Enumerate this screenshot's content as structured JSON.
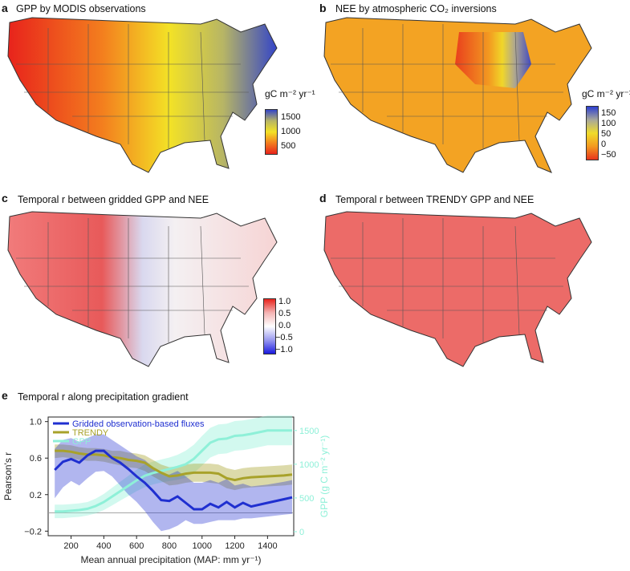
{
  "panels": {
    "a": {
      "letter": "a",
      "title": "GPP by MODIS observations",
      "unit": "gC m⁻² yr⁻¹",
      "ticks": [
        "1500",
        "1000",
        "500"
      ]
    },
    "b": {
      "letter": "b",
      "title": "NEE by atmospheric CO₂ inversions",
      "unit": "gC m⁻² yr⁻¹",
      "ticks": [
        "150",
        "100",
        "50",
        "0",
        "−50"
      ]
    },
    "c": {
      "letter": "c",
      "title": "Temporal r between gridded GPP and NEE",
      "ticks": [
        "1.0",
        "0.5",
        "0.0",
        "−0.5",
        "−1.0"
      ]
    },
    "d": {
      "letter": "d",
      "title": "Temporal r between TRENDY GPP and NEE"
    },
    "e": {
      "letter": "e",
      "title": "Temporal r along precipitation gradient"
    }
  },
  "colors": {
    "gridded": "#1f2fd0",
    "trendy": "#a8a22a",
    "gpp": "#8ef0d8"
  },
  "chart_data": [
    {
      "type": "line",
      "title": "Temporal r along precipitation gradient",
      "xlabel": "Mean annual precipitation (MAP: mm yr⁻¹)",
      "ylabel": "Pearson's r",
      "y2label": "GPP (g C m⁻² yr⁻¹)",
      "xlim": [
        60,
        1560
      ],
      "ylim": [
        -0.25,
        1.05
      ],
      "y2lim": [
        -60,
        1700
      ],
      "xticks": [
        "200",
        "400",
        "600",
        "800",
        "1000",
        "1200",
        "1400"
      ],
      "yticks": [
        "−0.2",
        "0.2",
        "0.6",
        "1.0"
      ],
      "y2ticks": [
        "0",
        "500",
        "1000",
        "1500"
      ],
      "legend_position": "top-left",
      "x": [
        100,
        150,
        200,
        250,
        300,
        350,
        400,
        450,
        500,
        550,
        600,
        650,
        700,
        750,
        800,
        850,
        900,
        950,
        1000,
        1050,
        1100,
        1150,
        1200,
        1250,
        1300,
        1400,
        1500,
        1550
      ],
      "series": [
        {
          "name": "Gridded observation-based fluxes",
          "axis": "left",
          "values": [
            0.47,
            0.56,
            0.59,
            0.55,
            0.63,
            0.68,
            0.68,
            0.6,
            0.55,
            0.48,
            0.4,
            0.33,
            0.24,
            0.14,
            0.13,
            0.18,
            0.11,
            0.04,
            0.04,
            0.1,
            0.06,
            0.12,
            0.06,
            0.11,
            0.07,
            0.11,
            0.15,
            0.17
          ],
          "lower": [
            0.16,
            0.28,
            0.35,
            0.3,
            0.38,
            0.45,
            0.46,
            0.4,
            0.3,
            0.2,
            0.12,
            0.02,
            -0.1,
            -0.2,
            -0.18,
            -0.14,
            -0.08,
            -0.12,
            -0.12,
            -0.1,
            -0.08,
            -0.08,
            -0.08,
            -0.06,
            -0.06,
            -0.04,
            -0.02,
            -0.01
          ],
          "upper": [
            0.7,
            0.8,
            0.82,
            0.78,
            0.82,
            0.86,
            0.86,
            0.8,
            0.74,
            0.68,
            0.62,
            0.58,
            0.5,
            0.43,
            0.42,
            0.46,
            0.4,
            0.33,
            0.33,
            0.36,
            0.33,
            0.37,
            0.3,
            0.32,
            0.29,
            0.31,
            0.34,
            0.36
          ]
        },
        {
          "name": "TRENDY",
          "axis": "left",
          "values": [
            0.68,
            0.68,
            0.67,
            0.65,
            0.64,
            0.64,
            0.63,
            0.61,
            0.6,
            0.58,
            0.57,
            0.55,
            0.49,
            0.44,
            0.4,
            0.41,
            0.43,
            0.44,
            0.44,
            0.44,
            0.43,
            0.38,
            0.36,
            0.38,
            0.39,
            0.4,
            0.41,
            0.42
          ],
          "lower": [
            0.6,
            0.61,
            0.6,
            0.58,
            0.57,
            0.57,
            0.56,
            0.54,
            0.52,
            0.5,
            0.49,
            0.46,
            0.4,
            0.35,
            0.3,
            0.31,
            0.33,
            0.34,
            0.34,
            0.33,
            0.32,
            0.27,
            0.25,
            0.27,
            0.28,
            0.29,
            0.3,
            0.31
          ],
          "upper": [
            0.75,
            0.75,
            0.74,
            0.72,
            0.71,
            0.71,
            0.7,
            0.68,
            0.68,
            0.66,
            0.65,
            0.63,
            0.58,
            0.53,
            0.5,
            0.51,
            0.53,
            0.54,
            0.54,
            0.54,
            0.53,
            0.49,
            0.47,
            0.49,
            0.5,
            0.51,
            0.52,
            0.53
          ]
        },
        {
          "name": "GPP",
          "axis": "right",
          "values": [
            300,
            300,
            310,
            320,
            340,
            380,
            440,
            520,
            600,
            680,
            760,
            830,
            870,
            900,
            930,
            960,
            1000,
            1080,
            1200,
            1320,
            1370,
            1380,
            1420,
            1430,
            1450,
            1500,
            1500,
            1500
          ],
          "lower": [
            200,
            200,
            210,
            220,
            240,
            270,
            320,
            390,
            460,
            530,
            600,
            660,
            700,
            730,
            750,
            770,
            800,
            870,
            980,
            1100,
            1150,
            1160,
            1200,
            1210,
            1230,
            1280,
            1280,
            1280
          ],
          "upper": [
            400,
            400,
            410,
            420,
            440,
            490,
            560,
            650,
            740,
            830,
            920,
            1000,
            1040,
            1070,
            1100,
            1140,
            1200,
            1290,
            1420,
            1540,
            1590,
            1600,
            1640,
            1650,
            1670,
            1720,
            1720,
            1720
          ]
        }
      ]
    }
  ]
}
